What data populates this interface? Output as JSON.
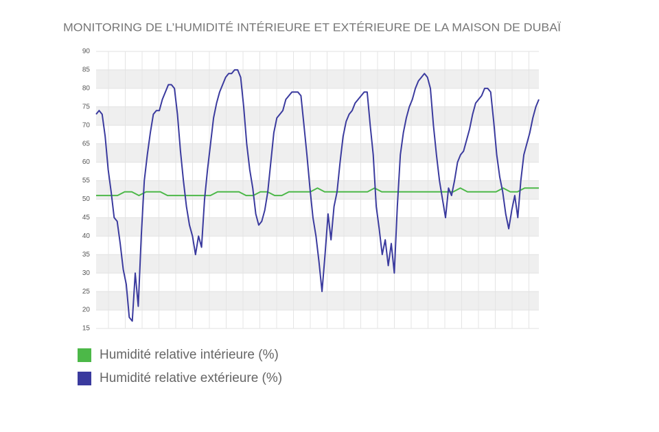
{
  "chart_data": {
    "type": "line",
    "title": "MONITORING DE L’HUMIDITÉ INTÉRIEURE ET EXTÉRIEURE DE LA MAISON DE DUBAÏ",
    "ylim": [
      15,
      90
    ],
    "yticks": [
      15,
      20,
      25,
      30,
      35,
      40,
      45,
      50,
      55,
      60,
      65,
      70,
      75,
      80,
      85,
      90
    ],
    "grid": true,
    "legend": "bottom-left",
    "series": [
      {
        "name": "Humidité relative intérieure (%)",
        "color": "#4cb848",
        "values": [
          51,
          51,
          51,
          51,
          52,
          52,
          51,
          52,
          52,
          52,
          51,
          51,
          51,
          51,
          51,
          51,
          51,
          52,
          52,
          52,
          52,
          51,
          51,
          52,
          52,
          51,
          51,
          52,
          52,
          52,
          52,
          53,
          52,
          52,
          52,
          52,
          52,
          52,
          52,
          53,
          52,
          52,
          52,
          52,
          52,
          52,
          52,
          52,
          52,
          52,
          52,
          53,
          52,
          52,
          52,
          52,
          52,
          53,
          52,
          52,
          53,
          53,
          53
        ]
      },
      {
        "name": "Humidité relative extérieure (%)",
        "color": "#3a3a9e",
        "values": [
          73,
          74,
          73,
          67,
          58,
          52,
          45,
          44,
          38,
          31,
          27,
          18,
          17,
          30,
          21,
          40,
          55,
          62,
          68,
          73,
          74,
          74,
          77,
          79,
          81,
          81,
          80,
          73,
          63,
          55,
          48,
          43,
          40,
          35,
          40,
          37,
          50,
          58,
          65,
          72,
          76,
          79,
          81,
          83,
          84,
          84,
          85,
          85,
          83,
          75,
          65,
          58,
          53,
          46,
          43,
          44,
          47,
          52,
          60,
          68,
          72,
          73,
          74,
          77,
          78,
          79,
          79,
          79,
          78,
          70,
          62,
          53,
          45,
          40,
          33,
          25,
          35,
          46,
          39,
          48,
          52,
          60,
          67,
          71,
          73,
          74,
          76,
          77,
          78,
          79,
          79,
          70,
          62,
          48,
          42,
          35,
          39,
          32,
          38,
          30,
          48,
          62,
          68,
          72,
          75,
          77,
          80,
          82,
          83,
          84,
          83,
          80,
          70,
          62,
          55,
          50,
          45,
          53,
          51,
          55,
          60,
          62,
          63,
          66,
          69,
          73,
          76,
          77,
          78,
          80,
          80,
          79,
          71,
          62,
          56,
          52,
          46,
          42,
          47,
          51,
          45,
          55,
          62,
          65,
          68,
          72,
          75,
          77
        ]
      }
    ]
  }
}
